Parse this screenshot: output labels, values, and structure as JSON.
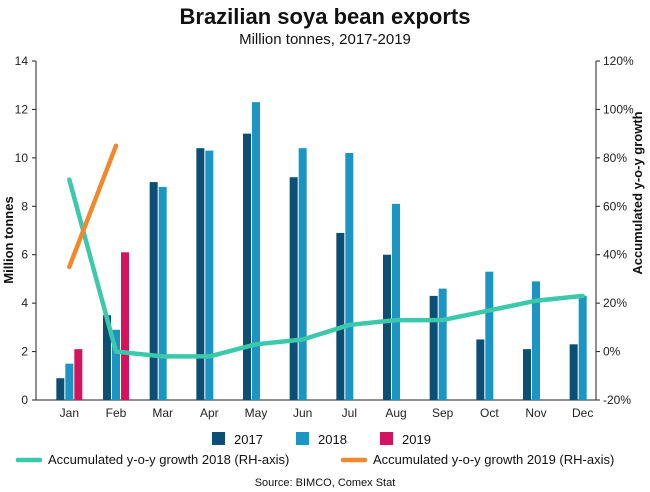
{
  "chart_data": {
    "type": "bar",
    "title": "Brazilian soya bean exports",
    "subtitle": "Million tonnes, 2017-2019",
    "ylabel": "Million tonnes",
    "y2label": "Accumulated y-o-y growth",
    "source": "Source: BIMCO, Comex Stat",
    "ylim": [
      0,
      14
    ],
    "yticks": [
      "0",
      "2",
      "4",
      "6",
      "8",
      "10",
      "12",
      "14"
    ],
    "y2lim": [
      -20,
      120
    ],
    "y2ticks": [
      "-20%",
      "0%",
      "20%",
      "40%",
      "60%",
      "80%",
      "100%",
      "120%"
    ],
    "categories": [
      "Jan",
      "Feb",
      "Mar",
      "Apr",
      "May",
      "Jun",
      "Jul",
      "Aug",
      "Sep",
      "Oct",
      "Nov",
      "Dec"
    ],
    "series": [
      {
        "name": "2017",
        "color": "#0d4f74",
        "values": [
          0.9,
          3.5,
          9.0,
          10.4,
          11.0,
          9.2,
          6.9,
          6.0,
          4.3,
          2.5,
          2.1,
          2.3
        ]
      },
      {
        "name": "2018",
        "color": "#1a95c4",
        "values": [
          1.5,
          2.9,
          8.8,
          10.3,
          12.3,
          10.4,
          10.2,
          8.1,
          4.6,
          5.3,
          4.9,
          4.3
        ]
      },
      {
        "name": "2019",
        "color": "#d4125e",
        "values": [
          2.1,
          6.1,
          null,
          null,
          null,
          null,
          null,
          null,
          null,
          null,
          null,
          null
        ]
      }
    ],
    "lines": [
      {
        "name": "Accumulated y-o-y growth 2018 (RH-axis)",
        "color": "#3cc8aa",
        "axis": "right",
        "values": [
          71,
          0,
          -2,
          -2,
          3,
          5,
          11,
          13,
          13,
          17,
          21,
          23
        ]
      },
      {
        "name": "Accumulated y-o-y growth 2019 (RH-axis)",
        "color": "#f0892b",
        "axis": "right",
        "values": [
          35,
          85,
          null,
          null,
          null,
          null,
          null,
          null,
          null,
          null,
          null,
          null
        ]
      }
    ],
    "grid": false,
    "legend": "bottom"
  }
}
